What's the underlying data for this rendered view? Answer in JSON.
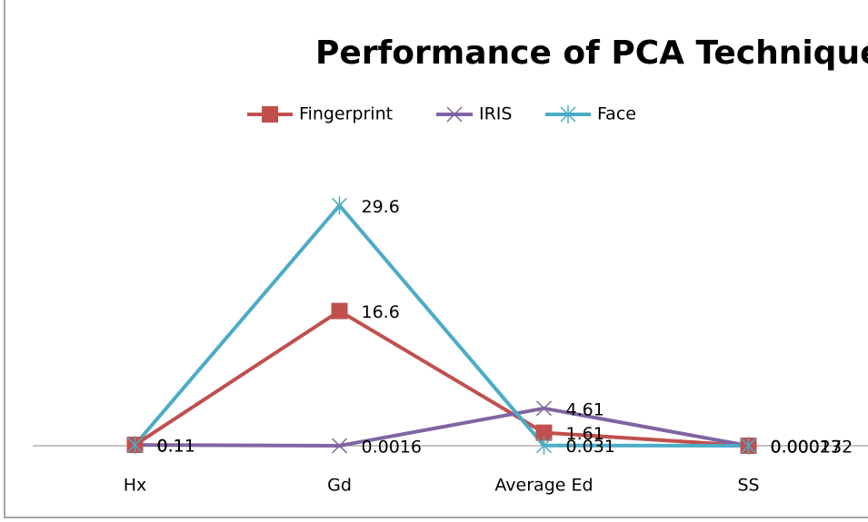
{
  "chart_data": {
    "type": "line",
    "title": "Performance of PCA Technique",
    "categories": [
      "Hx",
      "Gd",
      "Average Ed",
      "SS"
    ],
    "series": [
      {
        "name": "Fingerprint",
        "color": "#c0504d",
        "marker": "square",
        "values": [
          0.11,
          16.6,
          1.61,
          0.00017
        ]
      },
      {
        "name": "IRIS",
        "color": "#8064a2",
        "marker": "x",
        "values": [
          0.1,
          0.0016,
          4.61,
          0.000232
        ]
      },
      {
        "name": "Face",
        "color": "#4bacc6",
        "marker": "star",
        "values": [
          0.1,
          29.6,
          0.031,
          0.00013
        ]
      }
    ],
    "ylim": [
      0,
      35
    ],
    "legend": "top"
  }
}
